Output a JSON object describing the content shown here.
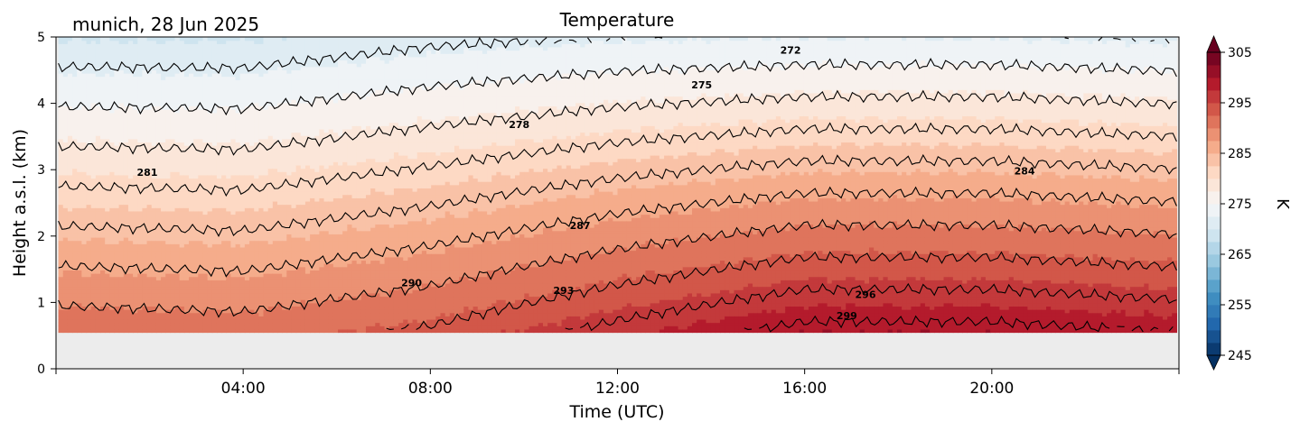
{
  "chart_data": {
    "type": "heatmap",
    "title": "Temperature",
    "subtitle": "munich, 28 Jun 2025",
    "xlabel": "Time (UTC)",
    "ylabel": "Height a.s.l. (km)",
    "colorbar_label": "K",
    "xlim": [
      0,
      24
    ],
    "ylim": [
      0,
      5
    ],
    "data_height_range_km": [
      0.55,
      5.0
    ],
    "x_ticks": [
      {
        "value": 4,
        "label": "04:00"
      },
      {
        "value": 8,
        "label": "08:00"
      },
      {
        "value": 12,
        "label": "12:00"
      },
      {
        "value": 16,
        "label": "16:00"
      },
      {
        "value": 20,
        "label": "20:00"
      }
    ],
    "y_ticks": [
      {
        "value": 0,
        "label": "0"
      },
      {
        "value": 1,
        "label": "1"
      },
      {
        "value": 2,
        "label": "2"
      },
      {
        "value": 3,
        "label": "3"
      },
      {
        "value": 4,
        "label": "4"
      },
      {
        "value": 5,
        "label": "5"
      }
    ],
    "colorbar": {
      "min": 245,
      "max": 305,
      "step": 2.5,
      "ticks": [
        "245",
        "255",
        "265",
        "275",
        "285",
        "295",
        "305"
      ],
      "colormap": "RdBu_r",
      "no_data_color": "#ececec"
    },
    "temperature_profile": {
      "hours": [
        0,
        4,
        8,
        12,
        16,
        20,
        24
      ],
      "surface_temp_K": [
        292,
        291.5,
        293.5,
        297,
        300,
        300,
        299
      ],
      "lapse_rate_K_per_km": [
        -5.0,
        -4.9,
        -5.0,
        -5.6,
        -6.2,
        -6.2,
        -6.1
      ]
    },
    "contours": {
      "levels": [
        272,
        275,
        278,
        281,
        284,
        287,
        290,
        293,
        296,
        299
      ],
      "labels": [
        {
          "text": "272",
          "x": 15.7,
          "y": 4.8
        },
        {
          "text": "275",
          "x": 13.8,
          "y": 4.28
        },
        {
          "text": "278",
          "x": 9.9,
          "y": 3.68
        },
        {
          "text": "281",
          "x": 1.95,
          "y": 2.96
        },
        {
          "text": "284",
          "x": 20.7,
          "y": 2.98
        },
        {
          "text": "287",
          "x": 11.2,
          "y": 2.16
        },
        {
          "text": "290",
          "x": 7.6,
          "y": 1.3
        },
        {
          "text": "293",
          "x": 10.85,
          "y": 1.18
        },
        {
          "text": "296",
          "x": 17.3,
          "y": 1.12
        },
        {
          "text": "299",
          "x": 16.9,
          "y": 0.8
        }
      ]
    }
  }
}
